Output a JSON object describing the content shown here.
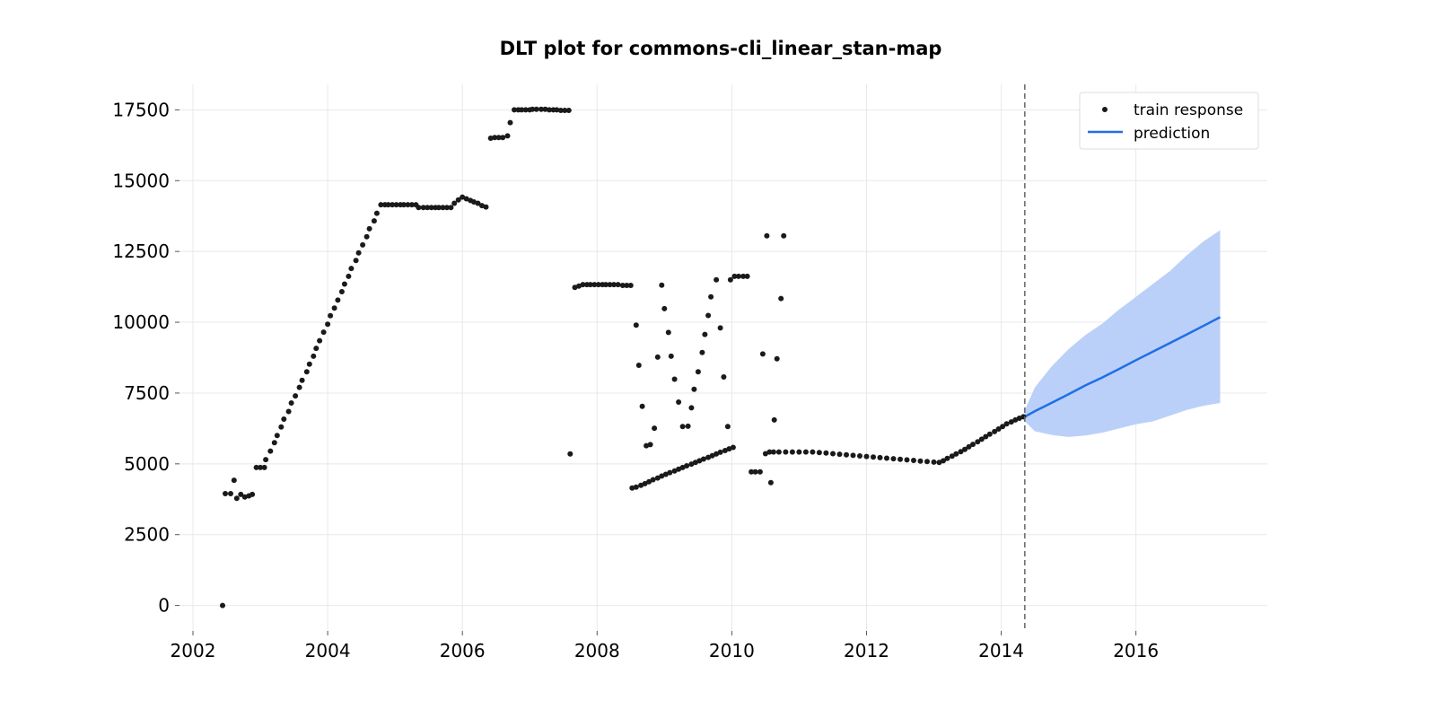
{
  "chart_data": {
    "type": "scatter",
    "title": "DLT plot for commons-cli_linear_stan-map",
    "xlabel": "",
    "ylabel": "",
    "xlim": [
      2001.8,
      2017.95
    ],
    "ylim": [
      -900,
      18400
    ],
    "x_ticks": [
      2002,
      2004,
      2006,
      2008,
      2010,
      2012,
      2014,
      2016
    ],
    "x_tick_labels": [
      "2002",
      "2004",
      "2006",
      "2008",
      "2010",
      "2012",
      "2014",
      "2016"
    ],
    "y_ticks": [
      0,
      2500,
      5000,
      7500,
      10000,
      12500,
      15000,
      17500
    ],
    "y_tick_labels": [
      "0",
      "2500",
      "5000",
      "7500",
      "10000",
      "12500",
      "15000",
      "17500"
    ],
    "grid": true,
    "legend_position": "top-right",
    "legend": [
      "train response",
      "prediction"
    ],
    "train_end": 2014.35,
    "series": [
      {
        "name": "train response",
        "kind": "scatter",
        "color": "#1a1a1a",
        "points": [
          [
            2002.44,
            0
          ],
          [
            2002.48,
            3950
          ],
          [
            2002.56,
            3950
          ],
          [
            2002.61,
            4420
          ],
          [
            2002.65,
            3780
          ],
          [
            2002.71,
            3920
          ],
          [
            2002.77,
            3830
          ],
          [
            2002.83,
            3870
          ],
          [
            2002.88,
            3920
          ],
          [
            2002.94,
            4870
          ],
          [
            2003.0,
            4870
          ],
          [
            2003.06,
            4870
          ],
          [
            2003.08,
            5150
          ],
          [
            2003.15,
            5450
          ],
          [
            2003.21,
            5750
          ],
          [
            2003.25,
            6000
          ],
          [
            2003.31,
            6300
          ],
          [
            2003.35,
            6580
          ],
          [
            2003.42,
            6850
          ],
          [
            2003.46,
            7150
          ],
          [
            2003.52,
            7400
          ],
          [
            2003.58,
            7700
          ],
          [
            2003.62,
            7950
          ],
          [
            2003.69,
            8250
          ],
          [
            2003.73,
            8520
          ],
          [
            2003.79,
            8800
          ],
          [
            2003.83,
            9080
          ],
          [
            2003.88,
            9350
          ],
          [
            2003.94,
            9650
          ],
          [
            2004.0,
            9930
          ],
          [
            2004.04,
            10230
          ],
          [
            2004.1,
            10500
          ],
          [
            2004.15,
            10780
          ],
          [
            2004.21,
            11080
          ],
          [
            2004.25,
            11350
          ],
          [
            2004.31,
            11620
          ],
          [
            2004.35,
            11900
          ],
          [
            2004.42,
            12180
          ],
          [
            2004.46,
            12450
          ],
          [
            2004.52,
            12730
          ],
          [
            2004.58,
            13020
          ],
          [
            2004.62,
            13300
          ],
          [
            2004.69,
            13580
          ],
          [
            2004.73,
            13850
          ],
          [
            2004.79,
            14150
          ],
          [
            2004.85,
            14150
          ],
          [
            2004.9,
            14150
          ],
          [
            2004.96,
            14150
          ],
          [
            2005.02,
            14150
          ],
          [
            2005.08,
            14150
          ],
          [
            2005.13,
            14150
          ],
          [
            2005.19,
            14150
          ],
          [
            2005.25,
            14150
          ],
          [
            2005.31,
            14150
          ],
          [
            2005.35,
            14050
          ],
          [
            2005.42,
            14050
          ],
          [
            2005.48,
            14050
          ],
          [
            2005.54,
            14050
          ],
          [
            2005.6,
            14050
          ],
          [
            2005.65,
            14050
          ],
          [
            2005.71,
            14050
          ],
          [
            2005.77,
            14050
          ],
          [
            2005.83,
            14050
          ],
          [
            2005.88,
            14200
          ],
          [
            2005.94,
            14320
          ],
          [
            2006.0,
            14420
          ],
          [
            2006.06,
            14360
          ],
          [
            2006.12,
            14300
          ],
          [
            2006.17,
            14250
          ],
          [
            2006.23,
            14200
          ],
          [
            2006.29,
            14120
          ],
          [
            2006.35,
            14070
          ],
          [
            2006.42,
            16500
          ],
          [
            2006.48,
            16520
          ],
          [
            2006.54,
            16520
          ],
          [
            2006.6,
            16520
          ],
          [
            2006.67,
            16580
          ],
          [
            2006.71,
            17050
          ],
          [
            2006.77,
            17500
          ],
          [
            2006.83,
            17500
          ],
          [
            2006.88,
            17500
          ],
          [
            2006.94,
            17500
          ],
          [
            2007.0,
            17500
          ],
          [
            2007.04,
            17520
          ],
          [
            2007.1,
            17520
          ],
          [
            2007.17,
            17520
          ],
          [
            2007.23,
            17520
          ],
          [
            2007.29,
            17500
          ],
          [
            2007.35,
            17500
          ],
          [
            2007.4,
            17500
          ],
          [
            2007.46,
            17480
          ],
          [
            2007.52,
            17480
          ],
          [
            2007.58,
            17480
          ],
          [
            2007.6,
            5350
          ],
          [
            2007.67,
            11230
          ],
          [
            2007.73,
            11280
          ],
          [
            2007.79,
            11330
          ],
          [
            2007.85,
            11330
          ],
          [
            2007.9,
            11330
          ],
          [
            2007.96,
            11330
          ],
          [
            2008.02,
            11330
          ],
          [
            2008.08,
            11330
          ],
          [
            2008.13,
            11330
          ],
          [
            2008.19,
            11330
          ],
          [
            2008.25,
            11330
          ],
          [
            2008.31,
            11330
          ],
          [
            2008.38,
            11300
          ],
          [
            2008.44,
            11300
          ],
          [
            2008.5,
            11300
          ],
          [
            2008.58,
            9900
          ],
          [
            2008.62,
            8480
          ],
          [
            2008.67,
            7030
          ],
          [
            2008.73,
            5640
          ],
          [
            2008.79,
            5680
          ],
          [
            2008.85,
            6260
          ],
          [
            2008.9,
            8770
          ],
          [
            2008.96,
            11310
          ],
          [
            2009.0,
            10480
          ],
          [
            2009.06,
            9640
          ],
          [
            2009.1,
            8800
          ],
          [
            2009.15,
            7990
          ],
          [
            2009.21,
            7180
          ],
          [
            2009.27,
            6320
          ],
          [
            2009.35,
            6330
          ],
          [
            2009.4,
            6980
          ],
          [
            2009.44,
            7630
          ],
          [
            2009.5,
            8250
          ],
          [
            2009.56,
            8930
          ],
          [
            2009.6,
            9570
          ],
          [
            2009.65,
            10240
          ],
          [
            2009.69,
            10900
          ],
          [
            2009.77,
            11500
          ],
          [
            2009.83,
            9800
          ],
          [
            2009.88,
            8070
          ],
          [
            2009.94,
            6320
          ],
          [
            2009.98,
            11500
          ],
          [
            2010.04,
            11620
          ],
          [
            2010.1,
            11620
          ],
          [
            2010.17,
            11620
          ],
          [
            2010.23,
            11620
          ],
          [
            2010.29,
            4720
          ],
          [
            2010.35,
            4720
          ],
          [
            2010.42,
            4720
          ],
          [
            2010.46,
            8880
          ],
          [
            2010.52,
            13050
          ],
          [
            2010.58,
            4340
          ],
          [
            2010.63,
            6550
          ],
          [
            2010.67,
            8710
          ],
          [
            2010.73,
            10840
          ],
          [
            2010.77,
            13050
          ],
          [
            2008.52,
            4150
          ],
          [
            2008.58,
            4180
          ],
          [
            2008.65,
            4240
          ],
          [
            2008.71,
            4300
          ],
          [
            2008.77,
            4370
          ],
          [
            2008.83,
            4440
          ],
          [
            2008.9,
            4500
          ],
          [
            2008.96,
            4570
          ],
          [
            2009.02,
            4630
          ],
          [
            2009.08,
            4690
          ],
          [
            2009.15,
            4750
          ],
          [
            2009.21,
            4810
          ],
          [
            2009.27,
            4870
          ],
          [
            2009.33,
            4930
          ],
          [
            2009.4,
            4990
          ],
          [
            2009.46,
            5050
          ],
          [
            2009.52,
            5110
          ],
          [
            2009.58,
            5170
          ],
          [
            2009.65,
            5230
          ],
          [
            2009.71,
            5290
          ],
          [
            2009.77,
            5350
          ],
          [
            2009.83,
            5410
          ],
          [
            2009.9,
            5470
          ],
          [
            2009.96,
            5530
          ],
          [
            2010.02,
            5580
          ],
          [
            2010.5,
            5360
          ],
          [
            2010.56,
            5420
          ],
          [
            2010.62,
            5420
          ],
          [
            2010.7,
            5420
          ],
          [
            2010.8,
            5420
          ],
          [
            2010.9,
            5420
          ],
          [
            2011.0,
            5420
          ],
          [
            2011.1,
            5420
          ],
          [
            2011.2,
            5420
          ],
          [
            2011.3,
            5400
          ],
          [
            2011.4,
            5380
          ],
          [
            2011.5,
            5360
          ],
          [
            2011.6,
            5340
          ],
          [
            2011.7,
            5320
          ],
          [
            2011.8,
            5300
          ],
          [
            2011.9,
            5280
          ],
          [
            2012.0,
            5260
          ],
          [
            2012.1,
            5240
          ],
          [
            2012.2,
            5220
          ],
          [
            2012.3,
            5200
          ],
          [
            2012.4,
            5180
          ],
          [
            2012.5,
            5160
          ],
          [
            2012.6,
            5140
          ],
          [
            2012.7,
            5120
          ],
          [
            2012.8,
            5100
          ],
          [
            2012.9,
            5080
          ],
          [
            2013.0,
            5060
          ],
          [
            2013.08,
            5050
          ],
          [
            2013.14,
            5110
          ],
          [
            2013.2,
            5190
          ],
          [
            2013.27,
            5270
          ],
          [
            2013.33,
            5350
          ],
          [
            2013.4,
            5430
          ],
          [
            2013.46,
            5510
          ],
          [
            2013.52,
            5600
          ],
          [
            2013.58,
            5690
          ],
          [
            2013.65,
            5780
          ],
          [
            2013.71,
            5870
          ],
          [
            2013.77,
            5960
          ],
          [
            2013.83,
            6050
          ],
          [
            2013.9,
            6140
          ],
          [
            2013.96,
            6230
          ],
          [
            2014.02,
            6320
          ],
          [
            2014.08,
            6410
          ],
          [
            2014.15,
            6480
          ],
          [
            2014.21,
            6550
          ],
          [
            2014.27,
            6610
          ],
          [
            2014.33,
            6660
          ]
        ]
      },
      {
        "name": "prediction",
        "kind": "line",
        "color": "#1f6fe5",
        "band_color": "#bad0f8",
        "x": [
          2014.35,
          2014.5,
          2014.75,
          2015.0,
          2015.25,
          2015.5,
          2015.75,
          2016.0,
          2016.25,
          2016.5,
          2016.75,
          2017.0,
          2017.25
        ],
        "y": [
          6660,
          6860,
          7160,
          7460,
          7770,
          8050,
          8350,
          8660,
          8960,
          9260,
          9560,
          9870,
          10180
        ],
        "lower": [
          6500,
          6150,
          6020,
          5950,
          6000,
          6100,
          6250,
          6400,
          6500,
          6700,
          6900,
          7050,
          7150
        ],
        "upper": [
          6900,
          7700,
          8450,
          9050,
          9550,
          9950,
          10450,
          10900,
          11350,
          11800,
          12350,
          12850,
          13250
        ]
      }
    ]
  }
}
